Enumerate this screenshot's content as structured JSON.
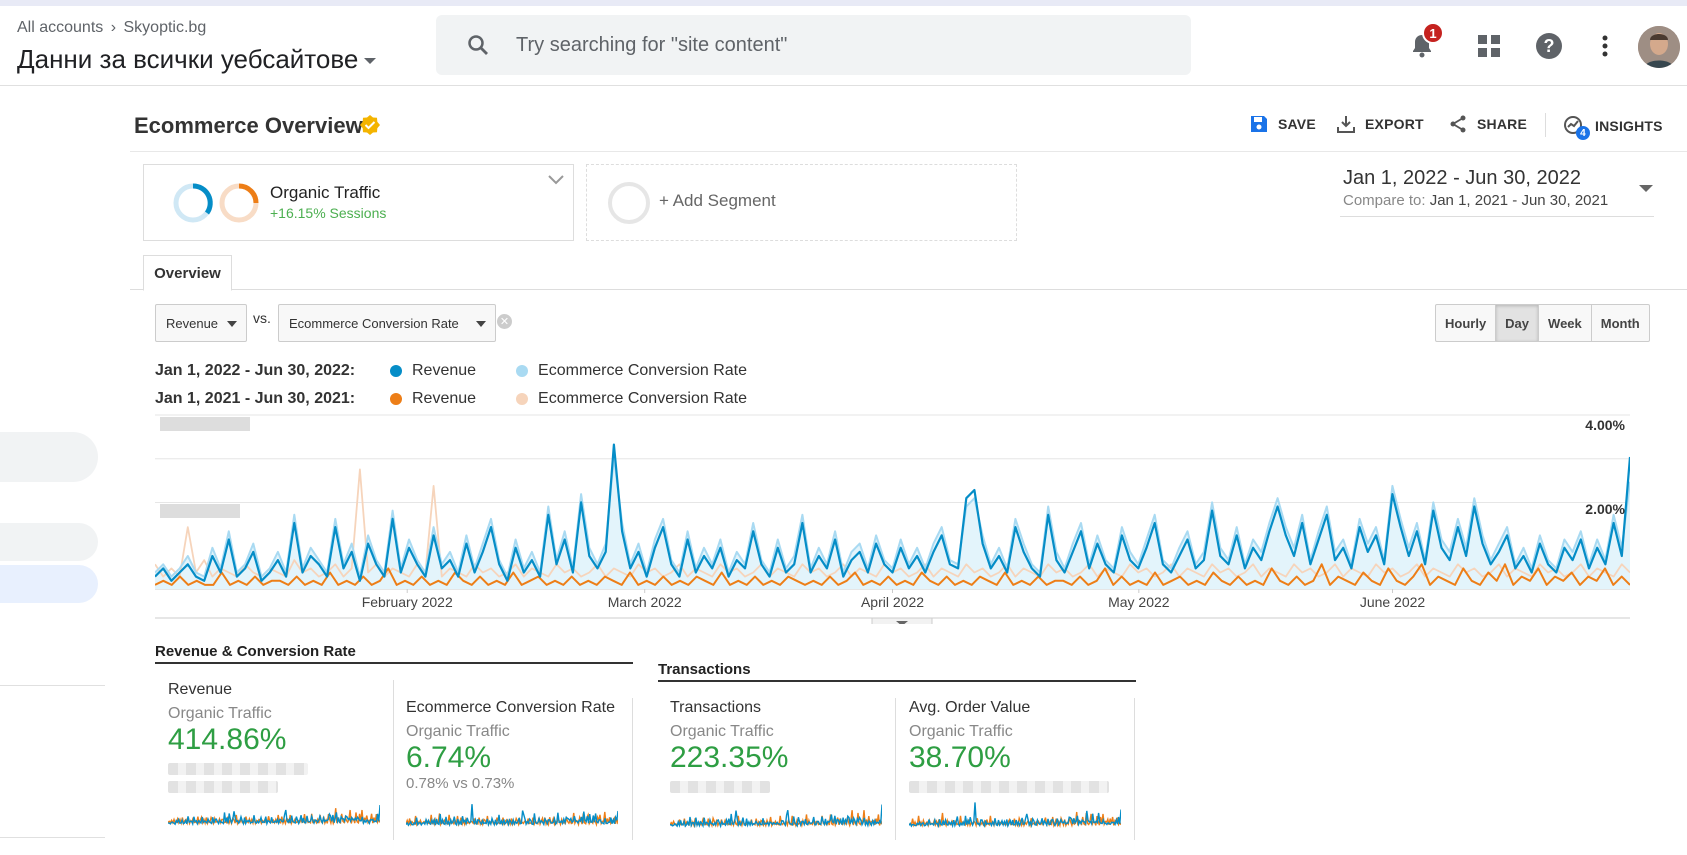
{
  "header": {
    "breadcrumb_all": "All accounts",
    "breadcrumb_site": "Skyoptic.bg",
    "account_title": "Данни за всички уебсайтове",
    "search_placeholder": "Try searching for \"site content\"",
    "notification_count": "1"
  },
  "report": {
    "title": "Ecommerce Overview",
    "actions": {
      "save": "SAVE",
      "export": "EXPORT",
      "share": "SHARE",
      "insights": "INSIGHTS",
      "insights_count": "4"
    }
  },
  "segment": {
    "name": "Organic Traffic",
    "change": "+16.15% Sessions",
    "add_label": "+ Add Segment"
  },
  "date_range": {
    "primary": "Jan 1, 2022 - Jun 30, 2022",
    "compare_label": "Compare to:",
    "compare": "Jan 1, 2021 - Jun 30, 2021"
  },
  "tab": {
    "overview": "Overview"
  },
  "controls": {
    "metric1": "Revenue",
    "vs": "vs.",
    "metric2": "Ecommerce Conversion Rate",
    "granularity": [
      "Hourly",
      "Day",
      "Week",
      "Month"
    ],
    "active_granularity": "Day"
  },
  "legend": {
    "range_current": "Jan 1, 2022 - Jun 30, 2022:",
    "range_previous": "Jan 1, 2021 - Jun 30, 2021:",
    "series_revenue": "Revenue",
    "series_conv": "Ecommerce Conversion Rate",
    "colors": {
      "rev_current": "#058dc7",
      "conv_current": "#a9daf2",
      "rev_previous": "#ed7e17",
      "conv_previous": "#f6d4bb"
    }
  },
  "chart_data": {
    "type": "line",
    "x_range": [
      "2022-01-01",
      "2022-06-30"
    ],
    "x_tick_labels": [
      "February 2022",
      "March 2022",
      "April 2022",
      "May 2022",
      "June 2022"
    ],
    "y_right_ticks": [
      "4.00%",
      "2.00%"
    ],
    "y_right_range": [
      0,
      4
    ],
    "series": [
      {
        "name": "Revenue",
        "values": [
          0.3,
          0.5,
          0.2,
          0.4,
          0.6,
          0.3,
          0.2,
          0.8,
          0.4,
          1.2,
          0.3,
          0.5,
          0.9,
          0.2,
          0.4,
          0.7,
          0.3,
          1.6,
          0.4,
          0.8,
          0.6,
          0.3,
          1.5,
          0.5,
          0.9,
          0.2,
          1.1,
          0.6,
          0.3,
          1.7,
          0.4,
          1.0,
          0.6,
          0.3,
          1.3,
          0.5,
          0.7,
          0.3,
          1.1,
          0.4,
          0.9,
          1.5,
          0.6,
          0.2,
          1.0,
          0.4,
          0.7,
          0.3,
          1.8,
          0.6,
          1.2,
          0.4,
          2.1,
          0.8,
          0.5,
          0.9,
          3.5,
          1.4,
          0.5,
          0.9,
          0.3,
          1.0,
          1.5,
          0.6,
          0.3,
          1.2,
          0.4,
          0.8,
          0.5,
          1.0,
          0.3,
          0.7,
          0.5,
          1.4,
          0.6,
          0.3,
          1.0,
          0.4,
          0.6,
          1.6,
          0.4,
          0.8,
          0.5,
          1.2,
          0.3,
          0.7,
          0.9,
          0.4,
          1.1,
          0.6,
          0.4,
          1.0,
          0.5,
          0.8,
          0.4,
          0.9,
          1.3,
          0.6,
          0.5,
          2.2,
          2.4,
          1.1,
          0.5,
          0.8,
          0.4,
          1.5,
          0.9,
          0.5,
          0.3,
          1.8,
          0.7,
          0.4,
          0.9,
          1.4,
          0.5,
          1.1,
          0.6,
          0.4,
          1.3,
          0.7,
          0.5,
          1.0,
          1.6,
          0.6,
          0.4,
          0.8,
          1.2,
          0.5,
          0.7,
          1.9,
          0.8,
          0.6,
          1.3,
          0.5,
          1.0,
          0.7,
          1.4,
          2.0,
          1.3,
          0.8,
          1.6,
          0.6,
          1.2,
          1.8,
          0.7,
          1.0,
          0.5,
          1.5,
          0.9,
          1.3,
          0.6,
          2.3,
          1.5,
          0.8,
          1.4,
          0.6,
          1.9,
          1.0,
          0.7,
          1.5,
          0.8,
          2.0,
          1.1,
          0.6,
          0.9,
          1.3,
          0.5,
          0.8,
          0.4,
          1.1,
          0.6,
          0.4,
          1.0,
          0.7,
          1.2,
          0.5,
          1.0,
          0.6,
          1.6,
          0.8,
          3.2
        ]
      },
      {
        "name": "Ecommerce Conversion Rate",
        "values": [
          0.4,
          0.6,
          0.3,
          0.5,
          0.8,
          0.4,
          0.3,
          1.0,
          0.5,
          1.4,
          0.4,
          0.6,
          1.1,
          0.3,
          0.5,
          0.9,
          0.4,
          1.8,
          0.5,
          1.0,
          0.7,
          0.4,
          1.7,
          0.6,
          1.1,
          0.3,
          1.3,
          0.7,
          0.4,
          1.9,
          0.5,
          1.2,
          0.7,
          0.4,
          1.5,
          0.6,
          0.9,
          0.4,
          1.3,
          0.5,
          1.1,
          1.7,
          0.7,
          0.3,
          1.2,
          0.5,
          0.9,
          0.4,
          2.0,
          0.7,
          1.4,
          0.5,
          2.3,
          1.0,
          0.6,
          1.1,
          3.2,
          1.6,
          0.6,
          1.1,
          0.4,
          1.2,
          1.7,
          0.7,
          0.4,
          1.4,
          0.5,
          1.0,
          0.6,
          1.2,
          0.4,
          0.9,
          0.6,
          1.6,
          0.7,
          0.4,
          1.2,
          0.5,
          0.8,
          1.8,
          0.5,
          1.0,
          0.6,
          1.4,
          0.4,
          0.9,
          1.1,
          0.5,
          1.3,
          0.7,
          0.5,
          1.2,
          0.6,
          1.0,
          0.5,
          1.1,
          1.5,
          0.7,
          0.6,
          2.0,
          2.2,
          1.3,
          0.6,
          1.0,
          0.5,
          1.7,
          1.1,
          0.6,
          0.4,
          2.0,
          0.9,
          0.5,
          1.1,
          1.6,
          0.6,
          1.3,
          0.7,
          0.5,
          1.5,
          0.9,
          0.6,
          1.2,
          1.8,
          0.7,
          0.5,
          1.0,
          1.4,
          0.6,
          0.9,
          2.1,
          1.0,
          0.7,
          1.5,
          0.6,
          1.2,
          0.9,
          1.6,
          2.2,
          1.5,
          1.0,
          1.8,
          0.7,
          1.4,
          2.0,
          0.9,
          1.2,
          0.6,
          1.7,
          1.1,
          1.5,
          0.7,
          2.5,
          1.7,
          1.0,
          1.6,
          0.7,
          2.1,
          1.2,
          0.9,
          1.7,
          1.0,
          2.2,
          1.3,
          0.7,
          1.1,
          1.5,
          0.6,
          1.0,
          0.5,
          1.3,
          0.7,
          0.5,
          1.2,
          0.9,
          1.4,
          0.6,
          1.2,
          0.7,
          1.8,
          1.0,
          2.6
        ]
      },
      {
        "name": "Revenue (previous)",
        "values": [
          0.1,
          0.2,
          0.1,
          0.3,
          0.1,
          0.2,
          0.1,
          0.1,
          0.4,
          0.1,
          0.2,
          0.1,
          0.3,
          0.1,
          0.2,
          0.2,
          0.1,
          0.3,
          0.1,
          0.2,
          0.1,
          0.4,
          0.1,
          0.2,
          0.1,
          0.3,
          0.1,
          0.2,
          0.5,
          0.1,
          0.2,
          0.1,
          0.3,
          0.1,
          0.2,
          0.1,
          0.4,
          0.2,
          0.1,
          0.3,
          0.1,
          0.2,
          0.1,
          0.4,
          0.1,
          0.2,
          0.3,
          0.1,
          0.2,
          0.1,
          0.3,
          0.1,
          0.2,
          0.1,
          0.3,
          0.2,
          0.1,
          0.4,
          0.1,
          0.2,
          0.1,
          0.3,
          0.1,
          0.2,
          0.1,
          0.3,
          0.2,
          0.1,
          0.4,
          0.1,
          0.2,
          0.1,
          0.3,
          0.1,
          0.2,
          0.1,
          0.3,
          0.2,
          0.1,
          0.2,
          0.1,
          0.3,
          0.1,
          0.2,
          0.4,
          0.1,
          0.2,
          0.1,
          0.3,
          0.1,
          0.2,
          0.1,
          0.4,
          0.2,
          0.1,
          0.3,
          0.1,
          0.2,
          0.1,
          0.3,
          0.2,
          0.1,
          0.4,
          0.1,
          0.2,
          0.1,
          0.3,
          0.1,
          0.2,
          0.2,
          0.1,
          0.3,
          0.1,
          0.2,
          0.5,
          0.1,
          0.3,
          0.1,
          0.2,
          0.1,
          0.4,
          0.1,
          0.2,
          0.3,
          0.1,
          0.2,
          0.1,
          0.4,
          0.2,
          0.1,
          0.3,
          0.1,
          0.2,
          0.1,
          0.5,
          0.2,
          0.1,
          0.3,
          0.1,
          0.2,
          0.6,
          0.1,
          0.3,
          0.2,
          0.1,
          0.4,
          0.2,
          0.1,
          0.5,
          0.2,
          0.1,
          0.3,
          0.6,
          0.1,
          0.3,
          0.2,
          0.1,
          0.5,
          0.2,
          0.1,
          0.4,
          0.2,
          0.6,
          0.1,
          0.3,
          0.2,
          0.5,
          0.1,
          0.3,
          0.2,
          0.4,
          0.1,
          0.3,
          0.2,
          0.5,
          0.1,
          0.3,
          0.1
        ]
      },
      {
        "name": "Ecommerce Conversion Rate (previous)",
        "values": [
          0.6,
          0.3,
          0.5,
          0.3,
          1.5,
          0.4,
          0.7,
          0.3,
          0.5,
          0.4,
          0.3,
          0.6,
          0.4,
          0.3,
          0.5,
          0.4,
          0.3,
          0.7,
          0.4,
          0.5,
          0.3,
          0.4,
          0.6,
          0.3,
          0.5,
          2.9,
          0.4,
          0.6,
          0.3,
          0.5,
          0.4,
          0.3,
          0.6,
          0.4,
          2.5,
          0.3,
          0.5,
          0.4,
          0.3,
          0.6,
          0.4,
          0.5,
          0.3,
          0.4,
          0.6,
          0.3,
          0.5,
          0.4,
          0.3,
          0.6,
          0.4,
          0.5,
          0.3,
          0.4,
          0.6,
          0.3,
          0.5,
          0.4,
          0.3,
          0.6,
          0.4,
          0.5,
          0.3,
          0.4,
          0.6,
          0.3,
          0.5,
          0.4,
          0.3,
          0.6,
          0.4,
          0.5,
          0.3,
          0.4,
          0.6,
          0.3,
          0.5,
          0.4,
          0.3,
          0.6,
          0.4,
          0.5,
          0.3,
          0.4,
          0.6,
          0.3,
          0.5,
          0.4,
          0.3,
          0.6,
          0.4,
          0.5,
          0.3,
          0.4,
          0.6,
          0.3,
          0.5,
          0.4,
          0.3,
          0.6,
          0.4,
          0.5,
          0.3,
          0.4,
          0.6,
          0.3,
          0.5,
          0.4,
          0.3,
          0.6,
          0.4,
          0.5,
          0.3,
          0.4,
          0.6,
          0.3,
          0.5,
          0.4,
          0.3,
          0.6,
          0.4,
          0.5,
          0.3,
          0.4,
          0.6,
          0.3,
          0.5,
          0.4,
          0.3,
          0.6,
          0.4,
          0.5,
          0.3,
          0.4,
          0.6,
          0.3,
          0.5,
          0.4,
          0.3,
          0.6,
          0.4,
          0.5,
          0.3,
          0.4,
          0.6,
          0.3,
          0.5,
          0.4,
          0.3,
          0.6,
          0.4,
          0.5,
          0.3,
          0.4,
          0.6,
          0.3,
          0.5,
          0.4,
          0.3,
          0.6,
          0.4,
          0.5,
          0.3,
          0.4,
          0.6,
          0.3,
          0.5,
          0.4,
          0.3,
          0.6,
          0.4,
          0.5,
          0.3,
          0.4,
          0.6,
          0.3,
          0.5,
          0.4,
          0.3,
          0.6,
          0.4
        ]
      }
    ]
  },
  "summary": {
    "section1_title": "Revenue & Conversion Rate",
    "section2_title": "Transactions",
    "cards": [
      {
        "title": "Revenue",
        "segment": "Organic Traffic",
        "value": "414.86%",
        "sub": ""
      },
      {
        "title": "Ecommerce Conversion Rate",
        "segment": "Organic Traffic",
        "value": "6.74%",
        "sub": "0.78% vs 0.73%"
      },
      {
        "title": "Transactions",
        "segment": "Organic Traffic",
        "value": "223.35%",
        "sub": ""
      },
      {
        "title": "Avg. Order Value",
        "segment": "Organic Traffic",
        "value": "38.70%",
        "sub": ""
      }
    ]
  }
}
